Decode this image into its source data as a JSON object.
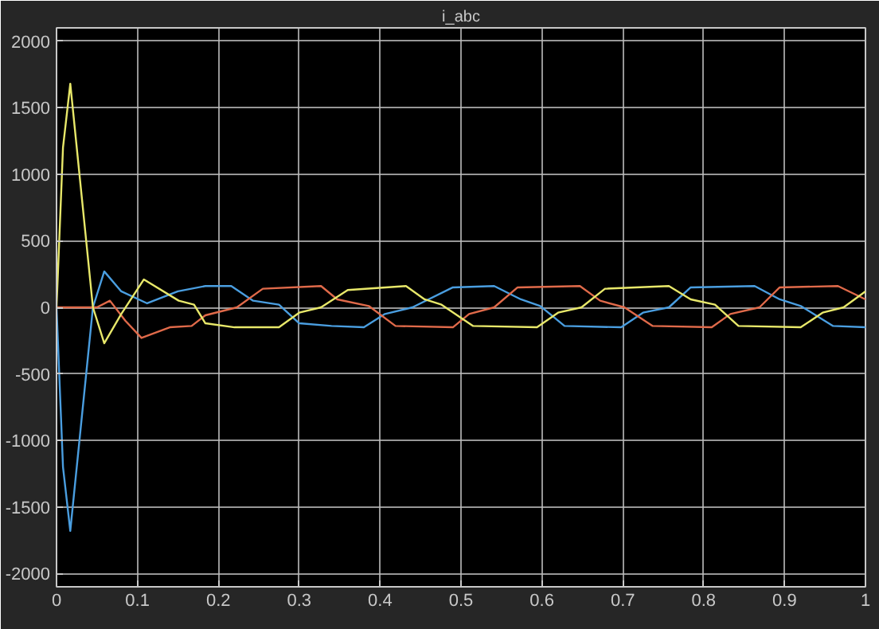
{
  "chart_data": {
    "type": "line",
    "title": "i_abc",
    "xlim": [
      0,
      1
    ],
    "ylim": [
      -2100,
      2100
    ],
    "xticks": [
      0,
      0.1,
      0.2,
      0.3,
      0.4,
      0.5,
      0.6,
      0.7,
      0.8,
      0.9,
      1
    ],
    "yticks": [
      -2000,
      -1500,
      -1000,
      -500,
      0,
      500,
      1000,
      1500,
      2000
    ],
    "grid": true,
    "marker": "none",
    "line_style": "solid",
    "series": [
      {
        "color": "#4a9ee0",
        "x": [
          0,
          0.008,
          0.017,
          0.03,
          0.045,
          0.059,
          0.08,
          0.112,
          0.15,
          0.184,
          0.216,
          0.243,
          0.275,
          0.3,
          0.34,
          0.38,
          0.406,
          0.44,
          0.49,
          0.541,
          0.574,
          0.598,
          0.628,
          0.698,
          0.725,
          0.757,
          0.784,
          0.863,
          0.894,
          0.92,
          0.96,
          1
        ],
        "values": [
          0,
          -1200,
          -1680,
          -900,
          0,
          270,
          120,
          30,
          120,
          160,
          160,
          50,
          20,
          -120,
          -140,
          -150,
          -50,
          0,
          150,
          160,
          60,
          10,
          -140,
          -150,
          -40,
          0,
          150,
          160,
          60,
          10,
          -140,
          -150
        ]
      },
      {
        "color": "#e06a4a",
        "x": [
          0,
          0.05,
          0.066,
          0.085,
          0.105,
          0.14,
          0.167,
          0.184,
          0.223,
          0.255,
          0.327,
          0.347,
          0.386,
          0.419,
          0.49,
          0.51,
          0.541,
          0.57,
          0.647,
          0.672,
          0.702,
          0.737,
          0.81,
          0.833,
          0.869,
          0.894,
          0.966,
          1
        ],
        "values": [
          0,
          0,
          50,
          -100,
          -230,
          -150,
          -140,
          -60,
          0,
          140,
          160,
          60,
          10,
          -140,
          -150,
          -50,
          0,
          150,
          160,
          50,
          0,
          -140,
          -150,
          -50,
          0,
          150,
          160,
          60
        ]
      },
      {
        "color": "#e8e86a",
        "x": [
          0,
          0.008,
          0.017,
          0.03,
          0.045,
          0.059,
          0.08,
          0.108,
          0.151,
          0.17,
          0.184,
          0.22,
          0.275,
          0.3,
          0.327,
          0.36,
          0.432,
          0.455,
          0.476,
          0.515,
          0.594,
          0.62,
          0.649,
          0.678,
          0.757,
          0.784,
          0.814,
          0.843,
          0.92,
          0.947,
          0.973,
          1
        ],
        "values": [
          0,
          1200,
          1680,
          900,
          0,
          -270,
          -50,
          210,
          50,
          20,
          -120,
          -150,
          -150,
          -40,
          0,
          130,
          160,
          60,
          20,
          -140,
          -150,
          -40,
          0,
          140,
          160,
          60,
          20,
          -140,
          -150,
          -40,
          0,
          120
        ]
      }
    ]
  }
}
